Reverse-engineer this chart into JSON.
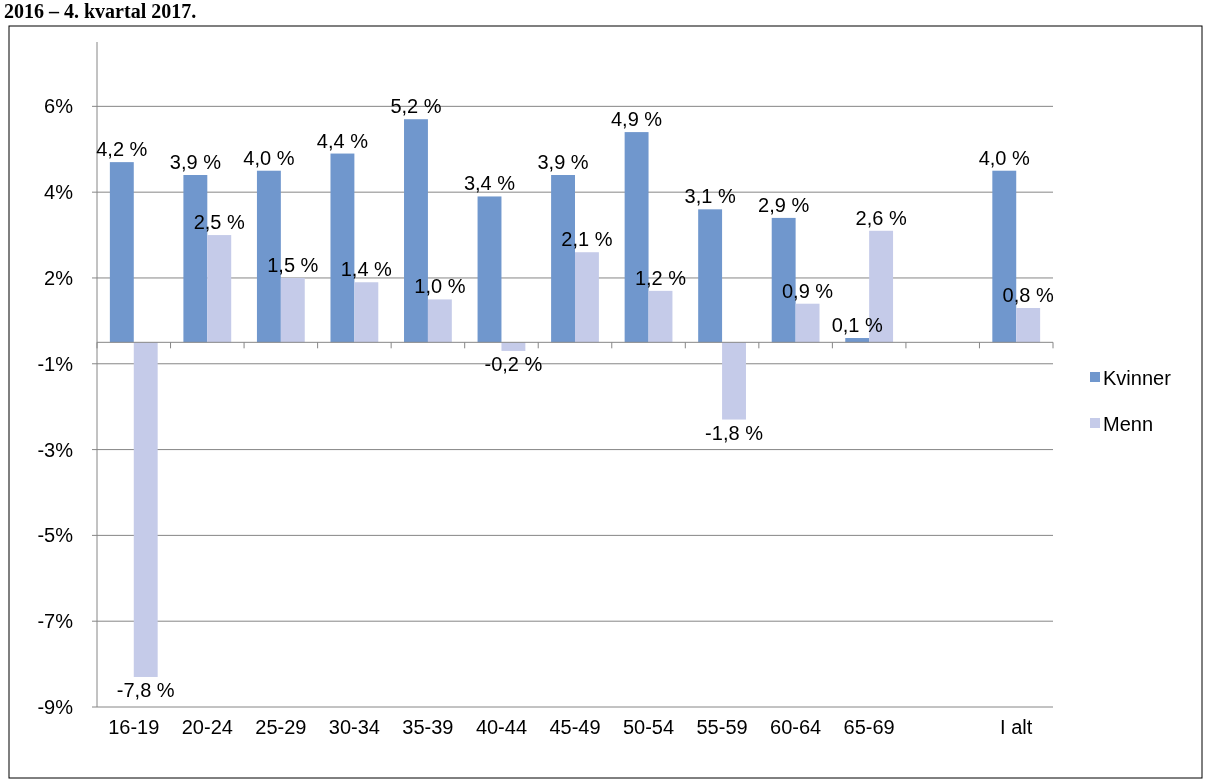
{
  "chart_data": {
    "type": "bar",
    "title": "2016 – 4. kvartal 2017.",
    "categories": [
      "16-19",
      "20-24",
      "25-29",
      "30-34",
      "35-39",
      "40-44",
      "45-49",
      "50-54",
      "55-59",
      "60-64",
      "65-69",
      null,
      "I alt"
    ],
    "series": [
      {
        "name": "Kvinner",
        "color": "#7097cd",
        "values": [
          4.2,
          3.9,
          4.0,
          4.4,
          5.2,
          3.4,
          3.9,
          4.9,
          3.1,
          2.9,
          0.1,
          null,
          4.0
        ],
        "value_labels": [
          "4,2 %",
          "3,9 %",
          "4,0 %",
          "4,4 %",
          "5,2 %",
          "3,4 %",
          "3,9 %",
          "4,9 %",
          "3,1 %",
          "2,9 %",
          "0,1 %",
          null,
          "4,0 %"
        ]
      },
      {
        "name": "Menn",
        "color": "#c5cbe9",
        "values": [
          -7.8,
          2.5,
          1.5,
          1.4,
          1.0,
          -0.2,
          2.1,
          1.2,
          -1.8,
          0.9,
          2.6,
          null,
          0.8
        ],
        "value_labels": [
          "-7,8 %",
          "2,5 %",
          "1,5 %",
          "1,4 %",
          "1,0 %",
          "-0,2 %",
          "2,1 %",
          "1,2 %",
          "-1,8 %",
          "0,9 %",
          "2,6 %",
          null,
          "0,8 %"
        ]
      }
    ],
    "ylim": [
      -8.5,
      7.0
    ],
    "yticks": [
      {
        "value": 5.5,
        "label": "6%"
      },
      {
        "value": 3.5,
        "label": "4%"
      },
      {
        "value": 1.5,
        "label": "2%"
      },
      {
        "value": -0.5,
        "label": "-1%"
      },
      {
        "value": -2.5,
        "label": "-3%"
      },
      {
        "value": -4.5,
        "label": "-5%"
      },
      {
        "value": -6.5,
        "label": "-7%"
      },
      {
        "value": -8.5,
        "label": "-9%"
      }
    ],
    "grid": "y",
    "legend": "right"
  }
}
